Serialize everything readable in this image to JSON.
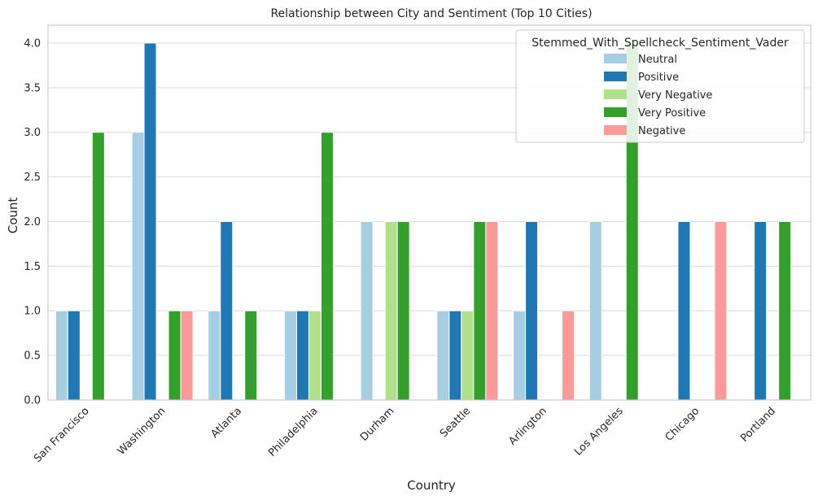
{
  "chart_data": {
    "type": "bar",
    "title": "Relationship between City and Sentiment (Top 10 Cities)",
    "xlabel": "Country",
    "ylabel": "Count",
    "ylim": [
      0,
      4.2
    ],
    "yticks": [
      "0.0",
      "0.5",
      "1.0",
      "1.5",
      "2.0",
      "2.5",
      "3.0",
      "3.5",
      "4.0"
    ],
    "grid": "horizontal",
    "legend": {
      "title": "Stemmed_With_Spellcheck_Sentiment_Vader",
      "placement": "top-right"
    },
    "categories": [
      "San Francisco",
      "Washington",
      "Atlanta",
      "Philadelphia",
      "Durham",
      "Seattle",
      "Arlington",
      "Los Angeles",
      "Chicago",
      "Portland"
    ],
    "series": [
      {
        "name": "Neutral",
        "color": "#a6cee3",
        "values": [
          1,
          3,
          1,
          1,
          2,
          1,
          1,
          2,
          0,
          0
        ]
      },
      {
        "name": "Positive",
        "color": "#1f78b4",
        "values": [
          1,
          4,
          2,
          1,
          0,
          1,
          2,
          0,
          2,
          2
        ]
      },
      {
        "name": "Very Negative",
        "color": "#b2df8a",
        "values": [
          0,
          0,
          0,
          1,
          2,
          1,
          0,
          0,
          0,
          0
        ]
      },
      {
        "name": "Very Positive",
        "color": "#33a02c",
        "values": [
          3,
          1,
          1,
          3,
          2,
          2,
          0,
          4,
          0,
          2
        ]
      },
      {
        "name": "Negative",
        "color": "#fb9a99",
        "values": [
          0,
          1,
          0,
          0,
          0,
          2,
          1,
          0,
          2,
          0
        ]
      }
    ]
  }
}
